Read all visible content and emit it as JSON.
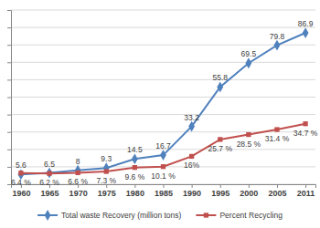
{
  "chart_data": {
    "type": "line",
    "categories": [
      "1960",
      "1965",
      "1970",
      "1975",
      "1980",
      "1985",
      "1990",
      "1995",
      "2000",
      "2005",
      "2011"
    ],
    "series": [
      {
        "name": "Total waste Recovery (million tons)",
        "color": "#4f81bd",
        "marker": "diamond",
        "values": [
          5.6,
          6.5,
          8,
          9.3,
          14.5,
          16.7,
          33.2,
          55.8,
          69.5,
          79.8,
          86.9
        ]
      },
      {
        "name": "Percent Recycling",
        "color": "#c0504d",
        "marker": "square",
        "values": [
          6.4,
          6.2,
          6.6,
          7.3,
          9.6,
          10.1,
          16,
          25.7,
          28.5,
          31.4,
          34.7
        ],
        "value_labels": [
          "6.4 %",
          "6.2 %",
          "6.6 %",
          "7.3 %",
          "9.6 %",
          "10.1 %",
          "16%",
          "25.7 %",
          "28.5 %",
          "31.4 %",
          "34.7 %"
        ]
      }
    ],
    "ylim": [
      0,
      100
    ],
    "yticks": [
      0,
      10,
      20,
      30,
      40,
      50,
      60,
      70,
      80,
      90,
      100
    ],
    "grid": true,
    "legend": "bottom",
    "data_labels": true,
    "tick_labels": "x"
  }
}
